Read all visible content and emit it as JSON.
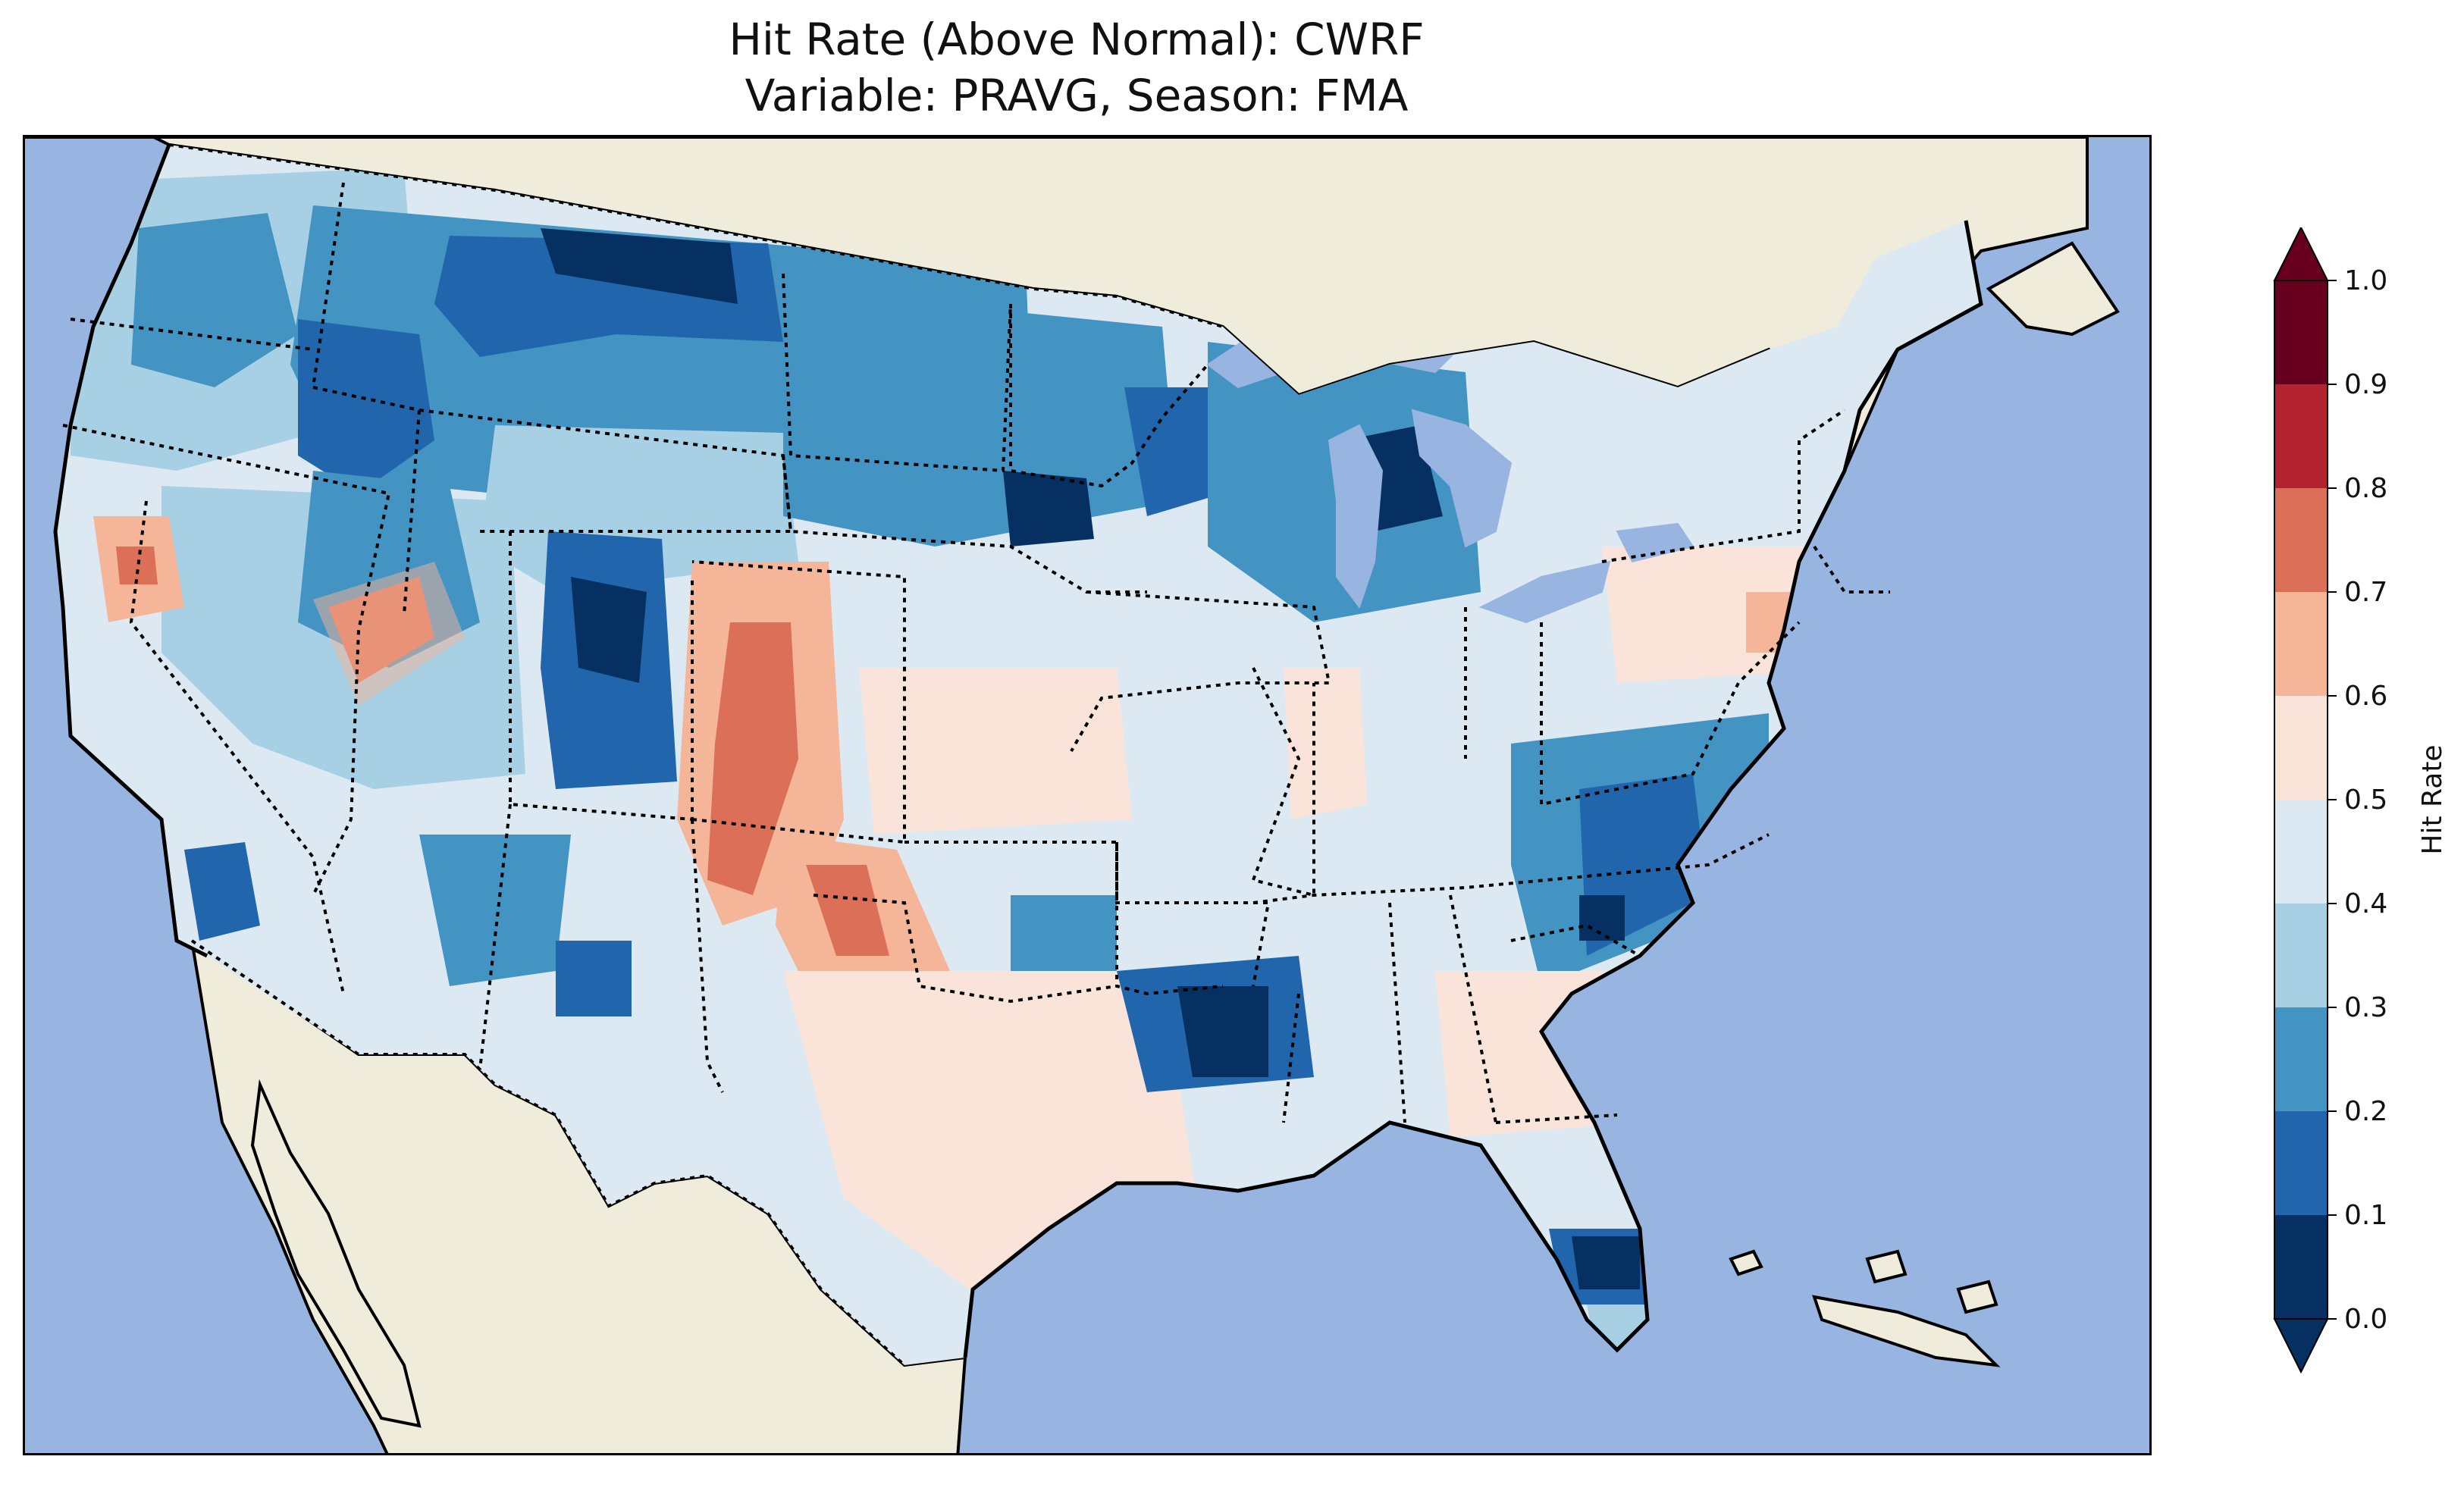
{
  "title": {
    "line1": "Hit Rate (Above Normal): CWRF",
    "line2": "Variable: PRAVG, Season: FMA"
  },
  "map": {
    "projection": "Lambert Conformal (CONUS)",
    "ocean_color": "#97b5e0",
    "land_color": "#efecdc",
    "lake_color": "#97b5e0",
    "coastline_color": "#000000",
    "state_border_style": "dotted"
  },
  "colorbar": {
    "label": "Hit Rate",
    "ticks": [
      "0.0",
      "0.1",
      "0.2",
      "0.3",
      "0.4",
      "0.5",
      "0.6",
      "0.7",
      "0.8",
      "0.9",
      "1.0"
    ],
    "extend": "both",
    "levels": [
      {
        "range": "0.0-0.1",
        "color": "#053061"
      },
      {
        "range": "0.1-0.2",
        "color": "#2166ac"
      },
      {
        "range": "0.2-0.3",
        "color": "#4393c3"
      },
      {
        "range": "0.3-0.4",
        "color": "#a8d0e4"
      },
      {
        "range": "0.4-0.5",
        "color": "#dde9f2"
      },
      {
        "range": "0.5-0.6",
        "color": "#fae3d9"
      },
      {
        "range": "0.6-0.7",
        "color": "#f4b598"
      },
      {
        "range": "0.7-0.8",
        "color": "#dc6f57"
      },
      {
        "range": "0.8-0.9",
        "color": "#b2222f"
      },
      {
        "range": "0.9-1.0",
        "color": "#67001f"
      }
    ]
  },
  "regions": [
    {
      "name": "Northern Rockies / Montana",
      "level": "0.2-0.3"
    },
    {
      "name": "Northern Montana border",
      "level": "0.0-0.1"
    },
    {
      "name": "Colorado Rockies",
      "level": "0.6-0.7"
    },
    {
      "name": "New Mexico",
      "level": "0.6-0.7"
    },
    {
      "name": "Texas",
      "level": "0.5-0.6"
    },
    {
      "name": "Michigan",
      "level": "0.0-0.1"
    },
    {
      "name": "Mid-Atlantic",
      "level": "0.1-0.2"
    },
    {
      "name": "Florida",
      "level": "0.0-0.1"
    },
    {
      "name": "Nevada",
      "level": "0.7-0.8"
    },
    {
      "name": "Northern California",
      "level": "0.7-0.8"
    }
  ]
}
